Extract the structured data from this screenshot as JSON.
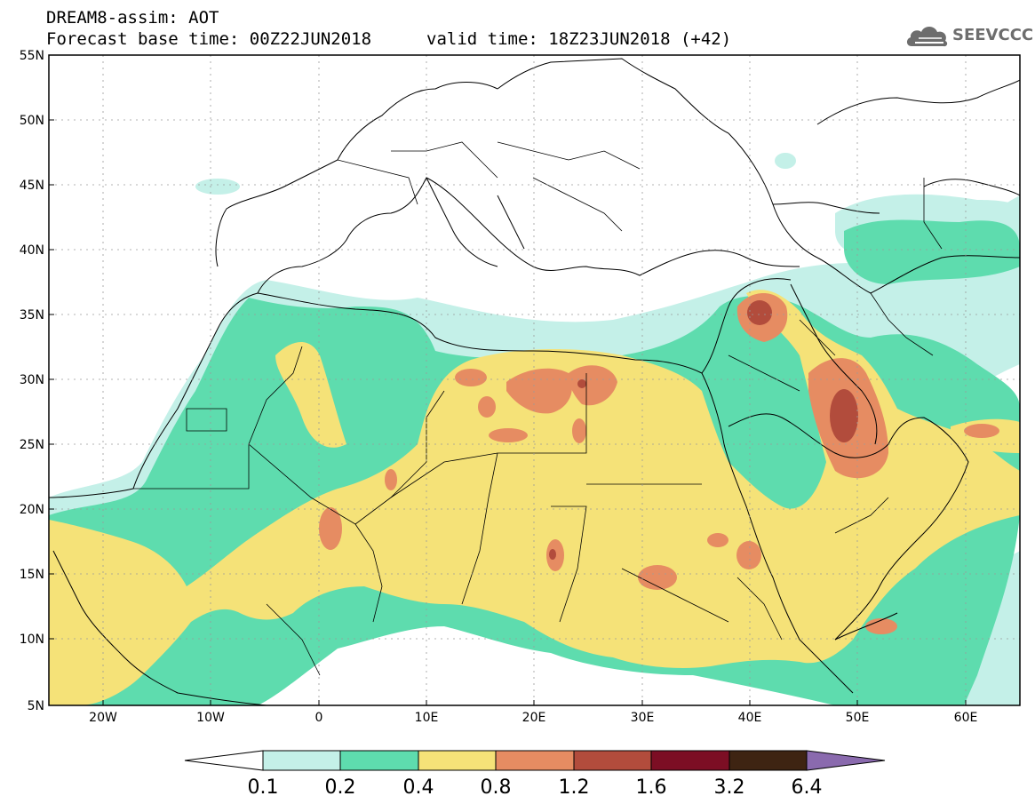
{
  "header": {
    "line1": "DREAM8-assim: AOT",
    "line2": "Forecast base time: 00Z22JUN2018",
    "line3": "valid time: 18Z23JUN2018 (+42)"
  },
  "logo": {
    "text": "SEEVCCC",
    "icon": "cloud-logo-icon"
  },
  "axes": {
    "lat_labels": [
      "55N",
      "50N",
      "45N",
      "40N",
      "35N",
      "30N",
      "25N",
      "20N",
      "15N",
      "10N",
      "5N"
    ],
    "lon_labels": [
      "20W",
      "10W",
      "0",
      "10E",
      "20E",
      "30E",
      "40E",
      "50E",
      "60E"
    ]
  },
  "colorbar": {
    "colors": [
      "#ffffff",
      "#c4f0e8",
      "#5edcae",
      "#f5e278",
      "#e68c62",
      "#b24c3c",
      "#7c0e24",
      "#3e2412",
      "#8a6aae"
    ],
    "labels": [
      "0.1",
      "0.2",
      "0.4",
      "0.8",
      "1.2",
      "1.6",
      "3.2",
      "6.4"
    ]
  }
}
